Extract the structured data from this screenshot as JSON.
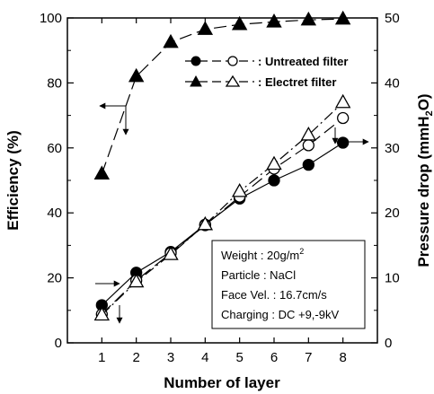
{
  "chart_data": {
    "type": "line",
    "xlabel": "Number of layer",
    "ylabel_left": "Efficiency (%)",
    "ylabel_right_main": "Pressure drop (mmH",
    "ylabel_right_sub": "2",
    "ylabel_right_end": "O)",
    "x": [
      1,
      2,
      3,
      4,
      5,
      6,
      7,
      8
    ],
    "xlim": [
      0,
      9
    ],
    "ylim_left": [
      0,
      100
    ],
    "ylim_right": [
      0,
      50
    ],
    "x_ticks": [
      "1",
      "2",
      "3",
      "4",
      "5",
      "6",
      "7",
      "8"
    ],
    "y_left_ticks": [
      "0",
      "20",
      "40",
      "60",
      "80",
      "100"
    ],
    "y_right_ticks": [
      "0",
      "10",
      "20",
      "30",
      "40",
      "50"
    ],
    "series": [
      {
        "name": ": Untreated filter",
        "axis": "right",
        "marker": "circle",
        "filled": true,
        "dash": "solid",
        "values": [
          5.8,
          10.8,
          14.0,
          18.2,
          22.2,
          25.0,
          27.4,
          30.8
        ]
      },
      {
        "name": ": Untreated filter",
        "axis": "right",
        "marker": "circle",
        "filled": false,
        "dash": "longdash",
        "values": [
          4.4,
          9.6,
          13.8,
          18.1,
          22.5,
          26.8,
          30.4,
          34.6
        ]
      },
      {
        "name": ": Electret filter",
        "axis": "left",
        "marker": "triangle",
        "filled": true,
        "dash": "longdash",
        "values": [
          52.0,
          82.0,
          92.5,
          96.5,
          98.0,
          98.8,
          99.4,
          99.7
        ]
      },
      {
        "name": ": Electret filter",
        "axis": "right",
        "marker": "triangle",
        "filled": false,
        "dash": "dashdot",
        "values": [
          4.3,
          9.4,
          13.6,
          18.2,
          23.3,
          27.5,
          32.0,
          37.0
        ]
      }
    ],
    "legend": [
      {
        "label": ": Untreated filter",
        "marker": "circle"
      },
      {
        "label": ": Electret filter",
        "marker": "triangle"
      }
    ],
    "legend_placement": "top-right",
    "info_box": {
      "lines": [
        {
          "text": "Weight : 20g/m",
          "sup": "2"
        },
        {
          "text": "Particle : NaCl",
          "sup": ""
        },
        {
          "text": "Face Vel. : 16.7cm/s",
          "sup": ""
        },
        {
          "text": "Charging : DC +9,-9kV",
          "sup": ""
        }
      ],
      "placement": "bottom-right"
    },
    "grid": false
  }
}
